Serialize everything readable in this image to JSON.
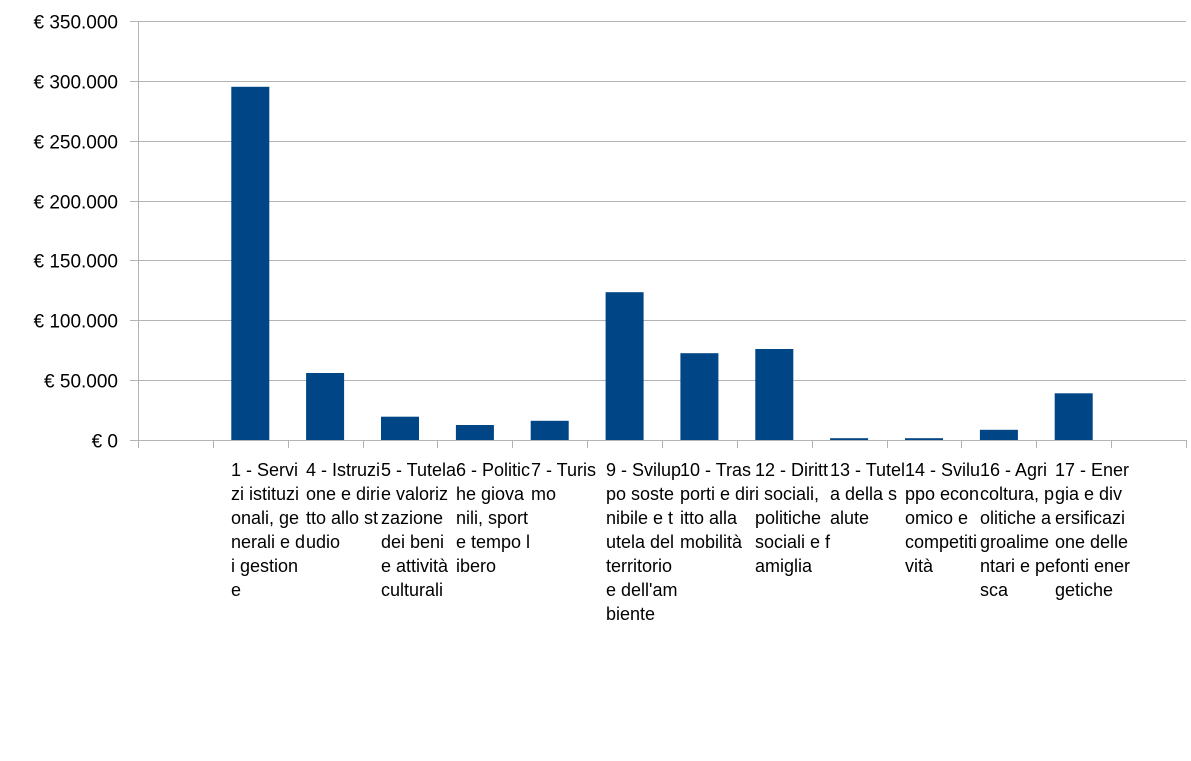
{
  "chart_data": {
    "type": "bar",
    "title": "",
    "xlabel": "",
    "ylabel": "",
    "ylim": [
      0,
      350000
    ],
    "yticks": [
      0,
      50000,
      100000,
      150000,
      200000,
      250000,
      300000,
      350000
    ],
    "ytick_labels": [
      "€ 0",
      "€ 50.000",
      "€ 100.000",
      "€ 150.000",
      "€ 200.000",
      "€ 250.000",
      "€ 300.000",
      "€ 350.000"
    ],
    "grid": true,
    "legend": "none",
    "bar_color": "#004586",
    "categories": [
      "",
      "1 - Servizi istituzionali, generali e di gestione",
      "4 - Istruzione e diritto allo studio",
      "5 - Tutela e valorizzazione dei beni e attività culturali",
      "6 - Politiche giovanili, sport e tempo libero",
      "7 - Turismo",
      "9 - Sviluppo sostenibile e tutela del territorio e dell'ambiente",
      "10 - Trasporti e diritto alla mobilità",
      "12 - Diritti sociali, politiche sociali e famiglia",
      "13 - Tutela della salute",
      "14 - Sviluppo economico e competitività",
      "16 - Agricoltura, politiche agroalimentari e pesca",
      "17 - Energia e diversificazione delle fonti energetiche",
      ""
    ],
    "values": [
      0,
      295000,
      56000,
      19500,
      12500,
      16000,
      123500,
      72500,
      76000,
      1500,
      1500,
      8500,
      39000,
      0
    ]
  }
}
